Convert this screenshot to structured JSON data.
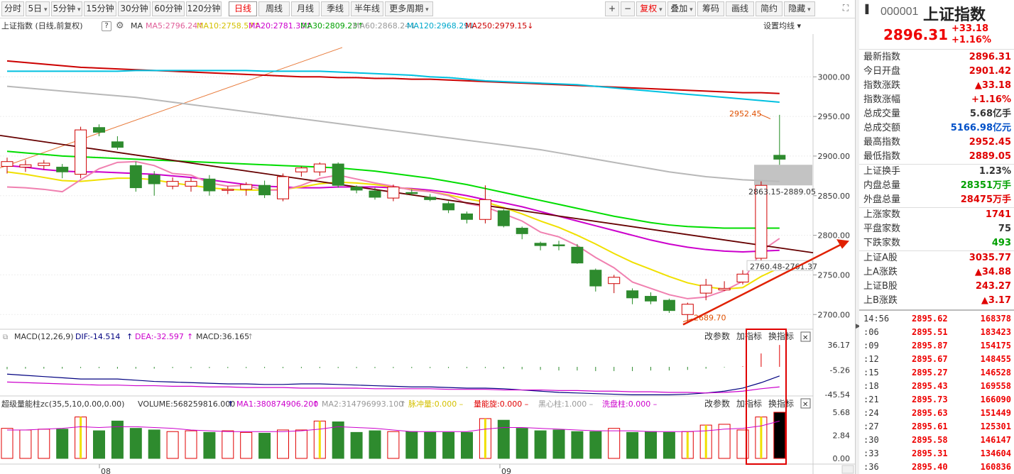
{
  "toolbar": {
    "period_tabs": [
      "分时",
      "5日",
      "5分钟",
      "15分钟",
      "30分钟",
      "60分钟",
      "120分钟",
      "日线",
      "周线",
      "月线",
      "季线",
      "半年线",
      "更多周期"
    ],
    "active_tab": "日线",
    "right_buttons": [
      "+",
      "−",
      "复权",
      "叠加",
      "筹码",
      "画线",
      "简约",
      "隐藏"
    ],
    "fq_label": "复权"
  },
  "legend": {
    "title": "上证指数 (日线,前复权)",
    "ma_label": "MA",
    "ma": [
      {
        "label": "MA5:2796.24",
        "color": "#e0609a",
        "arrow": "↑"
      },
      {
        "label": "MA10:2758.57",
        "color": "#d4c000",
        "arrow": "↑"
      },
      {
        "label": "MA20:2781.30",
        "color": "#cc00cc",
        "arrow": "↑"
      },
      {
        "label": "MA30:2809.23",
        "color": "#00a000",
        "arrow": "↑"
      },
      {
        "label": "MA60:2868.24",
        "color": "#999999",
        "arrow": "↓"
      },
      {
        "label": "MA120:2968.29",
        "color": "#00a8cc",
        "arrow": "↓"
      },
      {
        "label": "MA250:2979.15",
        "color": "#cc0000",
        "arrow": "↓"
      }
    ],
    "setting": "设置均线"
  },
  "price_axis": {
    "ticks": [
      "3000.00",
      "2950.00",
      "2900.00",
      "2850.00",
      "2800.00",
      "2750.00",
      "2700.00"
    ]
  },
  "annotations": {
    "high": "2952.45",
    "low": "2689.70",
    "gap": "2863.15-2889.05",
    "gap2": "2760.48-2761.37"
  },
  "macd": {
    "title": "MACD(12,26,9)",
    "dif": "DIF:-14.514",
    "dea": "DEA:-32.597",
    "macd": "MACD:36.165",
    "buttons": [
      "改参数",
      "加指标",
      "换指标"
    ],
    "axis": [
      "36.17",
      "-5.26",
      "-45.54"
    ]
  },
  "volume": {
    "title": "超级量能柱zc(35,5,10,0.00,0.00)",
    "vol": "VOLUME:568259816.000",
    "ma1": "MA1:380874906.200",
    "ma2": "MA2:314796993.100",
    "extra": [
      {
        "label": "脉冲量:0.000",
        "color": "#d4c000"
      },
      {
        "label": "量能旋:0.000",
        "color": "#e00000"
      },
      {
        "label": "黑心柱:1.000",
        "color": "#999999"
      },
      {
        "label": "洗盘柱:0.000",
        "color": "#cc00cc"
      }
    ],
    "buttons": [
      "改参数",
      "加指标",
      "换指标"
    ],
    "axis": [
      "5.68",
      "2.84",
      "0.00"
    ]
  },
  "dates": [
    "08",
    "09"
  ],
  "quote": {
    "code": "000001",
    "name": "上证指数",
    "price": "2896.31",
    "change": "+33.18",
    "pct": "+1.16%",
    "stats": [
      {
        "k": "最新指数",
        "v": "2896.31",
        "c": "#e00000"
      },
      {
        "k": "今日开盘",
        "v": "2901.42",
        "c": "#e00000"
      },
      {
        "k": "指数涨跌",
        "v": "▲33.18",
        "c": "#e00000"
      },
      {
        "k": "指数涨幅",
        "v": "+1.16%",
        "c": "#e00000"
      },
      {
        "k": "总成交量",
        "v": "5.68亿手",
        "c": "#333333"
      },
      {
        "k": "总成交额",
        "v": "5166.98亿元",
        "c": "#0050c8"
      },
      {
        "k": "最高指数",
        "v": "2952.45",
        "c": "#e00000"
      },
      {
        "k": "最低指数",
        "v": "2889.05",
        "c": "#e00000"
      },
      {
        "k": "上证换手",
        "v": "1.23%",
        "c": "#333333"
      },
      {
        "k": "内盘总量",
        "v": "28351万手",
        "c": "#00a000"
      },
      {
        "k": "外盘总量",
        "v": "28475万手",
        "c": "#e00000"
      },
      {
        "k": "上涨家数",
        "v": "1741",
        "c": "#e00000"
      },
      {
        "k": "平盘家数",
        "v": "75",
        "c": "#333333"
      },
      {
        "k": "下跌家数",
        "v": "493",
        "c": "#00a000"
      },
      {
        "k": "上证A股",
        "v": "3035.77",
        "c": "#e00000"
      },
      {
        "k": "上A涨跌",
        "v": "▲34.88",
        "c": "#e00000"
      },
      {
        "k": "上证B股",
        "v": "243.27",
        "c": "#e00000"
      },
      {
        "k": "上B涨跌",
        "v": "▲3.17",
        "c": "#e00000"
      }
    ],
    "ticks": [
      {
        "t": "14:56",
        "p": "2895.62",
        "q": "168378"
      },
      {
        "t": ":06",
        "p": "2895.51",
        "q": "183423"
      },
      {
        "t": ":09",
        "p": "2895.87",
        "q": "154175"
      },
      {
        "t": ":12",
        "p": "2895.67",
        "q": "148455"
      },
      {
        "t": ":15",
        "p": "2895.27",
        "q": "146528"
      },
      {
        "t": ":18",
        "p": "2895.43",
        "q": "169558"
      },
      {
        "t": ":21",
        "p": "2895.73",
        "q": "166090"
      },
      {
        "t": ":24",
        "p": "2895.63",
        "q": "151449"
      },
      {
        "t": ":27",
        "p": "2895.61",
        "q": "125301"
      },
      {
        "t": ":30",
        "p": "2895.58",
        "q": "146147"
      },
      {
        "t": ":33",
        "p": "2895.31",
        "q": "134604"
      },
      {
        "t": ":36",
        "p": "2895.40",
        "q": "160836"
      }
    ]
  },
  "chart_data": {
    "type": "candlestick",
    "candles": [
      [
        2887,
        2893,
        2898,
        2878
      ],
      [
        2886,
        2889,
        2895,
        2880
      ],
      [
        2888,
        2891,
        2895,
        2883
      ],
      [
        2886,
        2880,
        2890,
        2872
      ],
      [
        2877,
        2933,
        2937,
        2872
      ],
      [
        2936,
        2930,
        2940,
        2925
      ],
      [
        2918,
        2911,
        2925,
        2908
      ],
      [
        2888,
        2860,
        2893,
        2855
      ],
      [
        2876,
        2865,
        2881,
        2850
      ],
      [
        2862,
        2868,
        2873,
        2858
      ],
      [
        2862,
        2868,
        2873,
        2855
      ],
      [
        2871,
        2856,
        2876,
        2850
      ],
      [
        2858,
        2858,
        2862,
        2852
      ],
      [
        2858,
        2864,
        2867,
        2850
      ],
      [
        2863,
        2851,
        2869,
        2847
      ],
      [
        2846,
        2874,
        2878,
        2843
      ],
      [
        2880,
        2885,
        2887,
        2874
      ],
      [
        2880,
        2890,
        2892,
        2875
      ],
      [
        2890,
        2863,
        2892,
        2860
      ],
      [
        2861,
        2857,
        2863,
        2853
      ],
      [
        2856,
        2848,
        2860,
        2845
      ],
      [
        2847,
        2861,
        2864,
        2843
      ],
      [
        2854,
        2853,
        2858,
        2850
      ],
      [
        2848,
        2845,
        2852,
        2843
      ],
      [
        2840,
        2832,
        2843,
        2828
      ],
      [
        2827,
        2820,
        2830,
        2815
      ],
      [
        2820,
        2845,
        2863,
        2815
      ],
      [
        2831,
        2812,
        2833,
        2810
      ],
      [
        2809,
        2802,
        2811,
        2795
      ],
      [
        2790,
        2787,
        2792,
        2781
      ],
      [
        2788,
        2787,
        2793,
        2781
      ],
      [
        2785,
        2765,
        2789,
        2764
      ],
      [
        2756,
        2736,
        2758,
        2729
      ],
      [
        2739,
        2747,
        2750,
        2727
      ],
      [
        2730,
        2721,
        2733,
        2713
      ],
      [
        2723,
        2717,
        2728,
        2713
      ],
      [
        2718,
        2705,
        2720,
        2702
      ],
      [
        2700,
        2713,
        2715,
        2690
      ],
      [
        2727,
        2737,
        2745,
        2718
      ],
      [
        2731,
        2733,
        2742,
        2730
      ],
      [
        2741,
        2751,
        2756,
        2738
      ],
      [
        2771,
        2863,
        2868,
        2765
      ],
      [
        2901,
        2896,
        2952,
        2889
      ]
    ],
    "ma5": [
      2861,
      2860,
      2858,
      2855,
      2870,
      2884,
      2892,
      2893,
      2888,
      2878,
      2876,
      2866,
      2862,
      2863,
      2857,
      2857,
      2863,
      2872,
      2876,
      2871,
      2866,
      2862,
      2857,
      2855,
      2850,
      2840,
      2836,
      2827,
      2818,
      2804,
      2798,
      2787,
      2772,
      2759,
      2741,
      2733,
      2725,
      2720,
      2722,
      2730,
      2742,
      2780,
      2796
    ],
    "ma10": [
      2880,
      2877,
      2873,
      2869,
      2868,
      2870,
      2872,
      2872,
      2870,
      2866,
      2863,
      2860,
      2858,
      2857,
      2857,
      2858,
      2861,
      2865,
      2867,
      2866,
      2864,
      2861,
      2858,
      2855,
      2851,
      2846,
      2842,
      2835,
      2827,
      2818,
      2810,
      2800,
      2789,
      2777,
      2766,
      2757,
      2748,
      2740,
      2735,
      2732,
      2734,
      2748,
      2759
    ],
    "ma20": [
      2888,
      2886,
      2883,
      2881,
      2880,
      2880,
      2879,
      2878,
      2877,
      2875,
      2873,
      2870,
      2867,
      2864,
      2862,
      2861,
      2860,
      2860,
      2861,
      2861,
      2861,
      2860,
      2859,
      2857,
      2854,
      2850,
      2845,
      2841,
      2836,
      2830,
      2824,
      2818,
      2812,
      2806,
      2800,
      2794,
      2789,
      2785,
      2782,
      2780,
      2779,
      2780,
      2781
    ],
    "ma30": [
      2906,
      2904,
      2902,
      2900,
      2899,
      2898,
      2897,
      2896,
      2895,
      2894,
      2893,
      2892,
      2891,
      2890,
      2889,
      2888,
      2887,
      2886,
      2885,
      2883,
      2881,
      2878,
      2875,
      2872,
      2868,
      2864,
      2859,
      2854,
      2849,
      2844,
      2839,
      2834,
      2829,
      2824,
      2820,
      2816,
      2813,
      2811,
      2810,
      2809,
      2809,
      2809,
      2809
    ],
    "ma60": [
      2988,
      2986,
      2984,
      2982,
      2980,
      2978,
      2976,
      2974,
      2971,
      2968,
      2965,
      2962,
      2959,
      2956,
      2953,
      2950,
      2947,
      2944,
      2941,
      2938,
      2935,
      2932,
      2929,
      2926,
      2923,
      2920,
      2917,
      2914,
      2911,
      2908,
      2904,
      2900,
      2896,
      2892,
      2888,
      2884,
      2880,
      2877,
      2874,
      2872,
      2870,
      2869,
      2868
    ],
    "ma120": [
      3007,
      3007,
      3007,
      3007,
      3007,
      3007,
      3007,
      3008,
      3008,
      3008,
      3008,
      3008,
      3008,
      3008,
      3007,
      3007,
      3007,
      3007,
      3006,
      3005,
      3004,
      3003,
      3002,
      3000,
      2999,
      2997,
      2995,
      2994,
      2993,
      2992,
      2991,
      2990,
      2988,
      2986,
      2984,
      2982,
      2980,
      2978,
      2976,
      2974,
      2972,
      2970,
      2968
    ],
    "ma250": [
      3020,
      3018,
      3016,
      3014,
      3012,
      3011,
      3010,
      3009,
      3008,
      3007,
      3006,
      3005,
      3004,
      3003,
      3002,
      3001,
      3000,
      3000,
      2999,
      2999,
      2998,
      2998,
      2997,
      2997,
      2996,
      2995,
      2994,
      2993,
      2992,
      2991,
      2990,
      2989,
      2988,
      2987,
      2986,
      2985,
      2984,
      2983,
      2982,
      2981,
      2980,
      2980,
      2979
    ],
    "macd_hist": [
      -4,
      -3,
      -3,
      -3,
      -2,
      -2,
      -3,
      -3,
      -3,
      -2,
      -2,
      -2,
      -2,
      -2,
      -2,
      -2,
      -2,
      -2,
      -2,
      -2,
      -2,
      -2,
      -2,
      -2,
      -2,
      -2,
      -2,
      -3,
      -4,
      -5,
      -6,
      -6,
      -7,
      -7,
      -7,
      -6,
      -6,
      -5,
      -3,
      -1,
      1,
      22,
      36
    ],
    "dif": [
      -12,
      -14,
      -16,
      -18,
      -20,
      -20,
      -20,
      -22,
      -24,
      -25,
      -26,
      -27,
      -28,
      -28,
      -29,
      -29,
      -28,
      -28,
      -29,
      -30,
      -31,
      -32,
      -33,
      -33,
      -34,
      -35,
      -35,
      -36,
      -38,
      -40,
      -42,
      -43,
      -44,
      -45,
      -46,
      -46,
      -46,
      -45,
      -43,
      -40,
      -35,
      -26,
      -15
    ],
    "dea": [
      -25,
      -26,
      -27,
      -28,
      -29,
      -30,
      -30,
      -31,
      -31,
      -32,
      -32,
      -33,
      -33,
      -34,
      -34,
      -34,
      -35,
      -35,
      -35,
      -35,
      -36,
      -36,
      -36,
      -36,
      -37,
      -37,
      -37,
      -38,
      -38,
      -38,
      -39,
      -39,
      -40,
      -40,
      -41,
      -41,
      -42,
      -42,
      -43,
      -42,
      -40,
      -36,
      -33
    ],
    "vol": [
      3.7,
      3.5,
      3.6,
      3.6,
      5.1,
      3.4,
      4.6,
      3.7,
      3.5,
      3.3,
      3.4,
      3.2,
      3.4,
      3.2,
      3.1,
      3.5,
      3.5,
      4.6,
      4.5,
      3.2,
      3.4,
      3.3,
      3.3,
      3.2,
      3.2,
      3.2,
      4.9,
      4.7,
      3.7,
      3.4,
      3.5,
      3.3,
      3.3,
      3.7,
      3.2,
      3.3,
      3.2,
      3.3,
      4.1,
      4.2,
      3.5,
      5.1,
      5.68
    ],
    "vol_yellow": [
      4,
      17,
      26,
      37,
      38,
      41
    ],
    "vol_ma": [
      3.5,
      3.5,
      3.6,
      3.7,
      3.9,
      3.8,
      3.9,
      3.9,
      3.8,
      3.7,
      3.5,
      3.4,
      3.3,
      3.3,
      3.3,
      3.3,
      3.4,
      3.6,
      3.9,
      3.8,
      3.7,
      3.5,
      3.3,
      3.3,
      3.3,
      3.3,
      3.6,
      3.8,
      3.8,
      3.7,
      3.6,
      3.5,
      3.4,
      3.4,
      3.4,
      3.3,
      3.3,
      3.3,
      3.4,
      3.6,
      3.7,
      4.0,
      4.6
    ],
    "ylim": [
      2685,
      3045
    ],
    "xlabels": [
      "08",
      "09"
    ]
  }
}
